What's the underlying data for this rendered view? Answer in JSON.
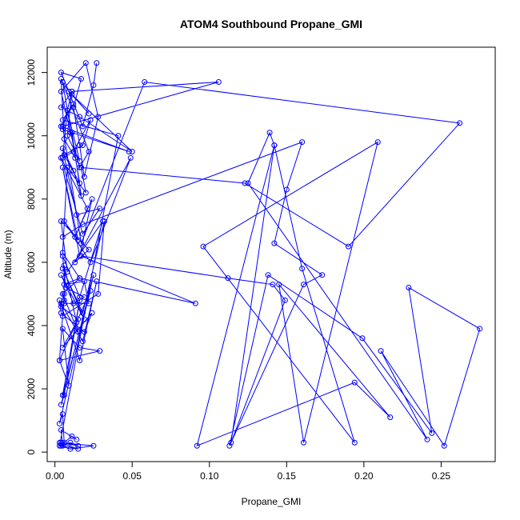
{
  "chart_data": {
    "type": "line",
    "title": "ATOM4 Southbound Propane_GMI",
    "xlabel": "Propane_GMI",
    "ylabel": "Altitude (m)",
    "xlim": [
      -0.005,
      0.285
    ],
    "ylim": [
      -300,
      12800
    ],
    "x_ticks": [
      0.0,
      0.05,
      0.1,
      0.15,
      0.2,
      0.25
    ],
    "x_tick_labels": [
      "0.00",
      "0.05",
      "0.10",
      "0.15",
      "0.20",
      "0.25"
    ],
    "y_ticks": [
      0,
      2000,
      4000,
      6000,
      8000,
      10000,
      12000
    ],
    "y_tick_labels": [
      "0",
      "2000",
      "4000",
      "6000",
      "8000",
      "10000",
      "12000"
    ],
    "grid": false,
    "legend": "none",
    "series_color": "#0000ff",
    "x": [
      0.027,
      0.025,
      0.018,
      0.004,
      0.017,
      0.012,
      0.016,
      0.019,
      0.028,
      0.02,
      0.004,
      0.01,
      0.016,
      0.022,
      0.004,
      0.006,
      0.013,
      0.011,
      0.017,
      0.012,
      0.005,
      0.014,
      0.029,
      0.018,
      0.004,
      0.021,
      0.013,
      0.024,
      0.016,
      0.005,
      0.015,
      0.006,
      0.023,
      0.049,
      0.013,
      0.022,
      0.004,
      0.008,
      0.031,
      0.016,
      0.005,
      0.007,
      0.019,
      0.012,
      0.004,
      0.019,
      0.005,
      0.018,
      0.032,
      0.028,
      0.005,
      0.006,
      0.006,
      0.014,
      0.015,
      0.005,
      0.016,
      0.006,
      0.019,
      0.022,
      0.006,
      0.004,
      0.015,
      0.005,
      0.024,
      0.019,
      0.004,
      0.003,
      0.016,
      0.027,
      0.018,
      0.004,
      0.006,
      0.003,
      0.029,
      0.016,
      0.005,
      0.009,
      0.003,
      0.023,
      0.005,
      0.016,
      0.006,
      0.004,
      0.025,
      0.003,
      0.005,
      0.006,
      0.011,
      0.014,
      0.004,
      0.005,
      0.01,
      0.015,
      0.004,
      0.004,
      0.015,
      0.003,
      0.025,
      0.01,
      0.003,
      0.041,
      0.005,
      0.012,
      0.004,
      0.048,
      0.005,
      0.011,
      0.004,
      0.016,
      0.05,
      0.011,
      0.022,
      0.009,
      0.005,
      0.016,
      0.006,
      0.018,
      0.023,
      0.012,
      0.005,
      0.008,
      0.016,
      0.008,
      0.011,
      0.106,
      0.005,
      0.017,
      0.058,
      0.262,
      0.19,
      0.123,
      0.017,
      0.02,
      0.008,
      0.005,
      0.016,
      0.091,
      0.017,
      0.112,
      0.141,
      0.149,
      0.114,
      0.142,
      0.092,
      0.194,
      0.217,
      0.145,
      0.161,
      0.209,
      0.096,
      0.194,
      0.16,
      0.142,
      0.139,
      0.125,
      0.241,
      0.211,
      0.252,
      0.275,
      0.229,
      0.244,
      0.199,
      0.138,
      0.113,
      0.161,
      0.173,
      0.142,
      0.15,
      0.16,
      0.018,
      0.005
    ],
    "y": [
      12300,
      11600,
      10300,
      12000,
      11800,
      10900,
      9700,
      8700,
      10600,
      12300,
      11400,
      10100,
      9000,
      9500,
      11800,
      9900,
      9300,
      10100,
      8100,
      8900,
      9600,
      7500,
      7700,
      6900,
      9300,
      7700,
      6800,
      8000,
      6200,
      9000,
      6700,
      7300,
      6000,
      9300,
      6000,
      6400,
      7300,
      5700,
      7300,
      4900,
      6200,
      5200,
      4900,
      4700,
      5600,
      4200,
      5800,
      4400,
      7300,
      5000,
      4300,
      4800,
      5900,
      4100,
      3800,
      5000,
      5500,
      5300,
      5400,
      4700,
      4700,
      4600,
      4200,
      3300,
      4400,
      3800,
      4400,
      4800,
      2900,
      5400,
      3500,
      4700,
      5000,
      2900,
      3200,
      3300,
      3900,
      2100,
      2900,
      5100,
      1800,
      4800,
      1800,
      1500,
      5600,
      900,
      1200,
      300,
      500,
      400,
      700,
      200,
      300,
      200,
      300,
      200,
      100,
      300,
      200,
      100,
      200,
      10000,
      10500,
      11000,
      10300,
      9500,
      10200,
      11400,
      10900,
      10600,
      9500,
      11300,
      10700,
      11400,
      11700,
      8500,
      9400,
      9700,
      10500,
      9500,
      9300,
      10800,
      9200,
      10000,
      11400,
      11700,
      10300,
      6600,
      11700,
      10400,
      6500,
      8500,
      9000,
      8200,
      9000,
      6300,
      5500,
      4700,
      6200,
      5500,
      5300,
      4800,
      300,
      9700,
      200,
      2200,
      1100,
      5300,
      300,
      9800,
      6500,
      300,
      5800,
      9700,
      10100,
      8500,
      400,
      3200,
      200,
      3900,
      5200,
      600,
      3600,
      5600,
      200,
      5300,
      5600,
      6600,
      8300,
      9800,
      7200,
      6800
    ]
  }
}
